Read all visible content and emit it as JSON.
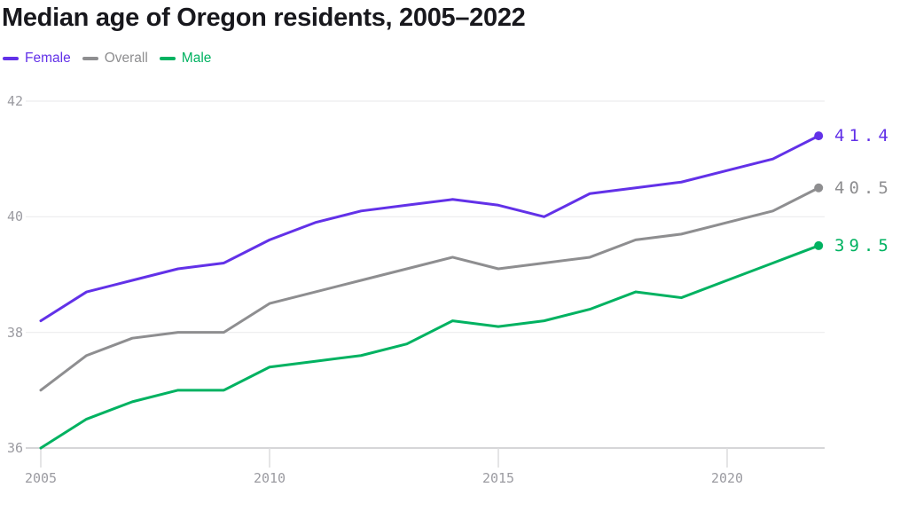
{
  "chart_data": {
    "type": "line",
    "title": "Median age of Oregon residents, 2005–2022",
    "xlabel": "",
    "ylabel": "",
    "x": [
      2005,
      2006,
      2007,
      2008,
      2009,
      2010,
      2011,
      2012,
      2013,
      2014,
      2015,
      2016,
      2017,
      2018,
      2019,
      2020,
      2021,
      2022
    ],
    "x_ticks": [
      2005,
      2010,
      2015,
      2020
    ],
    "y_ticks": [
      36,
      38,
      40,
      42
    ],
    "xlim": [
      2005,
      2022
    ],
    "ylim": [
      36,
      42
    ],
    "grid": "horizontal",
    "legend_position": "top-left",
    "series": [
      {
        "name": "Female",
        "color": "#6231e8",
        "end_label": "41.4",
        "values": [
          38.2,
          38.7,
          38.9,
          39.1,
          39.2,
          39.6,
          39.9,
          40.1,
          40.2,
          40.3,
          40.2,
          40.0,
          40.4,
          40.5,
          40.6,
          40.8,
          41.0,
          41.4
        ]
      },
      {
        "name": "Overall",
        "color": "#8e8e90",
        "end_label": "40.5",
        "values": [
          37.0,
          37.6,
          37.9,
          38.0,
          38.0,
          38.5,
          38.7,
          38.9,
          39.1,
          39.3,
          39.1,
          39.2,
          39.3,
          39.6,
          39.7,
          39.9,
          40.1,
          40.5
        ]
      },
      {
        "name": "Male",
        "color": "#00b261",
        "end_label": "39.5",
        "values": [
          36.0,
          36.5,
          36.8,
          37.0,
          37.0,
          37.4,
          37.5,
          37.6,
          37.8,
          38.2,
          38.1,
          38.2,
          38.4,
          38.7,
          38.6,
          38.9,
          39.2,
          39.5
        ]
      }
    ],
    "colors": {
      "gridline": "#ececee",
      "axis_line": "#c9c9cb",
      "tick_mark": "#dcdcde",
      "tick_text": "#9b9ba1",
      "title_text": "#18181d"
    }
  }
}
